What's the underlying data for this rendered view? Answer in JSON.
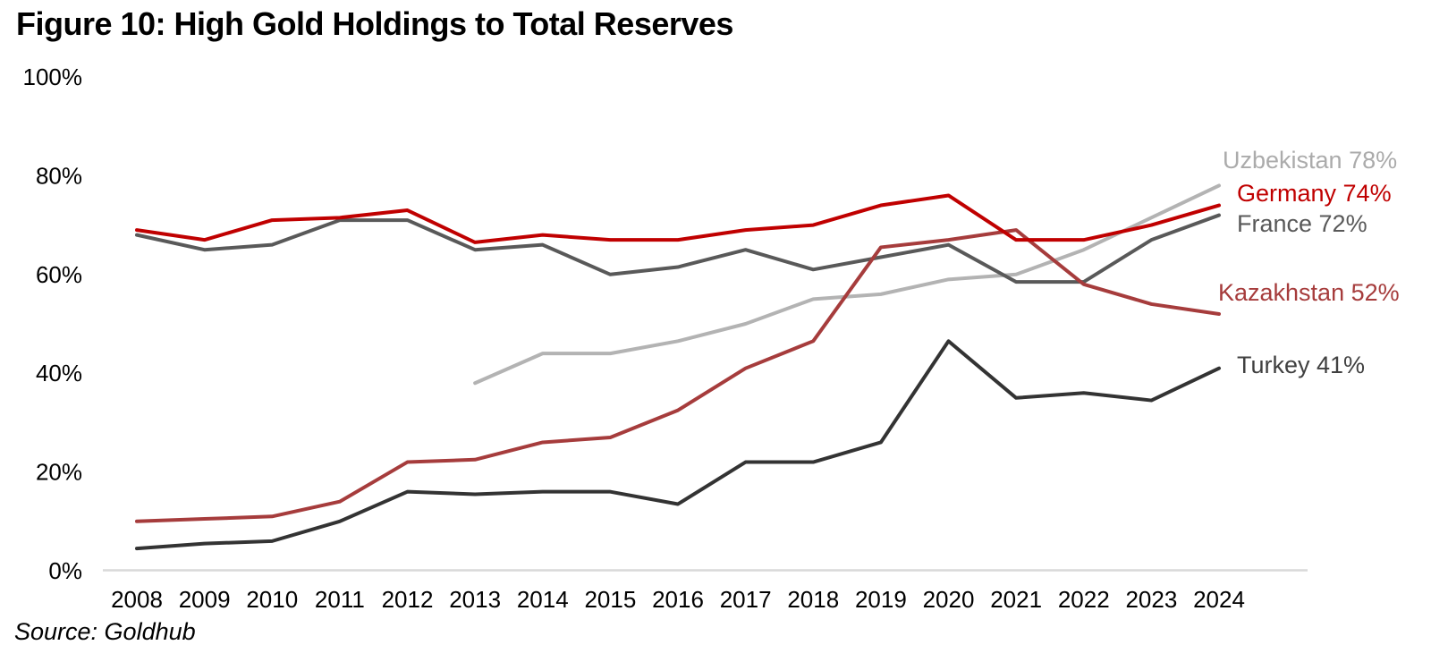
{
  "title": "Figure 10: High Gold Holdings to Total Reserves",
  "source": "Source: Goldhub",
  "chart_data": {
    "type": "line",
    "title": "Figure 10: High Gold Holdings to Total Reserves",
    "xlabel": "",
    "ylabel": "",
    "x": [
      2008,
      2009,
      2010,
      2011,
      2012,
      2013,
      2014,
      2015,
      2016,
      2017,
      2018,
      2019,
      2020,
      2021,
      2022,
      2023,
      2024
    ],
    "ylim": [
      0,
      100
    ],
    "yticks": [
      "0%",
      "20%",
      "40%",
      "60%",
      "80%",
      "100%"
    ],
    "grid": false,
    "legend_position": "end-of-line-labels-right",
    "axis_line_color": "#d9d9d9",
    "series": [
      {
        "name": "Uzbekistan",
        "label": "Uzbekistan 78%",
        "end_value": 78,
        "color": "#ababab",
        "line_color": "#b3b3b3",
        "values": [
          null,
          null,
          null,
          null,
          null,
          38,
          44,
          44,
          46.5,
          50,
          55,
          56,
          59,
          60,
          65,
          71.5,
          78
        ]
      },
      {
        "name": "France",
        "label": "France 72%",
        "end_value": 72,
        "color": "#595959",
        "line_color": "#595959",
        "values": [
          68,
          65,
          66,
          71,
          71,
          65,
          66,
          60,
          61.5,
          65,
          61,
          63.5,
          66,
          58.5,
          58.5,
          67,
          72
        ]
      },
      {
        "name": "Turkey",
        "label": "Turkey 41%",
        "end_value": 41,
        "color": "#404040",
        "line_color": "#333333",
        "values": [
          4.5,
          5.5,
          6,
          10,
          16,
          15.5,
          16,
          16,
          13.5,
          22,
          22,
          26,
          46.5,
          35,
          36,
          34.5,
          41
        ]
      },
      {
        "name": "Kazakhstan",
        "label": "Kazakhstan 52%",
        "end_value": 52,
        "color": "#a63c3c",
        "line_color": "#a63c3c",
        "values": [
          10,
          10.5,
          11,
          14,
          22,
          22.5,
          26,
          27,
          32.5,
          41,
          46.5,
          65.5,
          67,
          69,
          58,
          54,
          52
        ]
      },
      {
        "name": "Germany",
        "label": "Germany 74%",
        "end_value": 74,
        "color": "#c00000",
        "line_color": "#c00000",
        "values": [
          69,
          67,
          71,
          71.5,
          73,
          66.5,
          68,
          67,
          67,
          69,
          70,
          74,
          76,
          67,
          67,
          70,
          74
        ]
      }
    ]
  }
}
